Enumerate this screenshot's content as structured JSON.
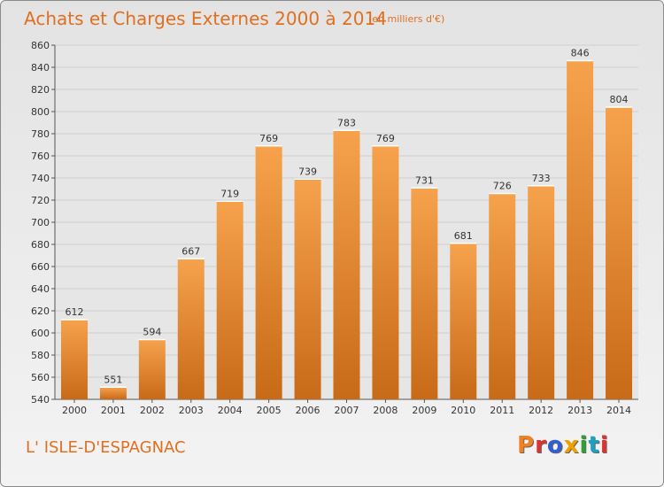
{
  "header": {
    "title": "Achats et Charges Externes 2000 à 2014",
    "subtitle": "(en milliers d'€)"
  },
  "footer": {
    "place": "L' ISLE-D'ESPAGNAC",
    "logo_text": "Proxiti",
    "logo_colors": [
      "#f08020",
      "#e03030",
      "#3060d0",
      "#f0a000",
      "#30a030",
      "#20a0c0",
      "#e03030"
    ]
  },
  "colors": {
    "accent": "#e07020",
    "bar_top": "#f6a24c",
    "bar_bottom": "#c86a18",
    "grid": "#cfcfcf",
    "plot_bg": "#e6e6e6"
  },
  "chart_data": {
    "type": "bar",
    "categories": [
      "2000",
      "2001",
      "2002",
      "2003",
      "2004",
      "2005",
      "2006",
      "2007",
      "2008",
      "2009",
      "2010",
      "2011",
      "2012",
      "2013",
      "2014"
    ],
    "values": [
      612,
      551,
      594,
      667,
      719,
      769,
      739,
      783,
      769,
      731,
      681,
      726,
      733,
      846,
      804
    ],
    "ylim": [
      540,
      860
    ],
    "ytick_step": 20,
    "grid": true,
    "data_labels": true,
    "title": "Achats et Charges Externes 2000 à 2014",
    "xlabel": "",
    "ylabel": ""
  }
}
